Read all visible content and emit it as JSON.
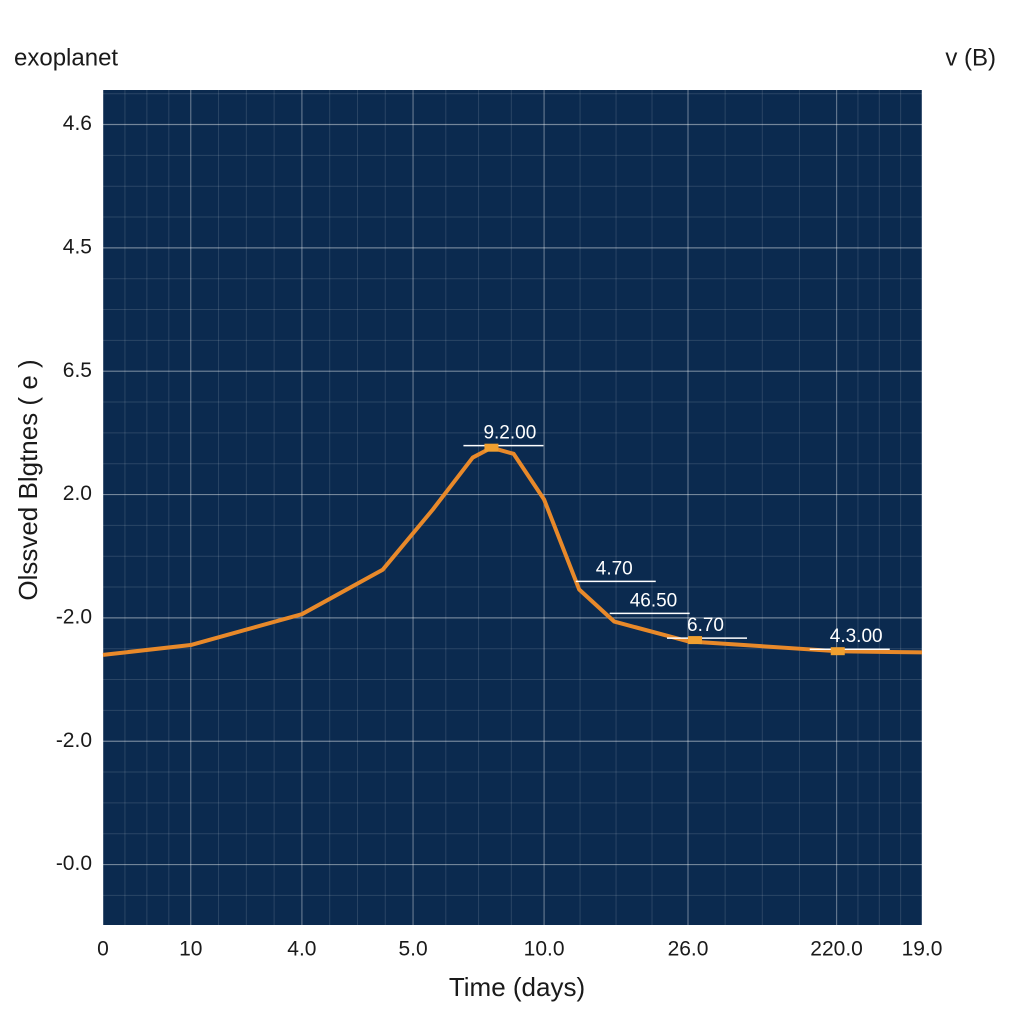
{
  "chart_data": {
    "type": "line",
    "title": "exoplanet",
    "subtitle": "v (B)",
    "x_label": "Time (days)",
    "y_label": "Olssved  Blgtnes   ( e )",
    "xlim": [
      0,
      7
    ],
    "ylim": [
      -0.49,
      6.28
    ],
    "xticks": [
      0,
      {
        "value": 0.75,
        "label": "10"
      },
      {
        "value": 1.7,
        "label": "4.0"
      },
      {
        "value": 2.65,
        "label": "5.0"
      },
      {
        "value": 3.77,
        "label": "10.0"
      },
      {
        "value": 5.0,
        "label": "26.0"
      },
      {
        "value": 6.27,
        "label": "220.0"
      },
      {
        "value": 7.0,
        "label": "19.0"
      }
    ],
    "yticks": [
      {
        "value": 0,
        "label": "-0.0"
      },
      {
        "value": 1,
        "label": "-2.0"
      },
      {
        "value": 2,
        "label": "-2.0"
      },
      {
        "value": 3,
        "label": "2.0"
      },
      {
        "value": 4,
        "label": "6.5"
      },
      {
        "value": 5,
        "label": "4.5"
      },
      {
        "value": 6,
        "label": "4.6"
      }
    ],
    "grid": true,
    "background": "#0b2a4f",
    "series": [
      {
        "color": "#e8892a",
        "x": [
          0,
          0.75,
          1.7,
          2.39,
          2.82,
          3.16,
          3.32,
          3.51,
          3.77,
          4.07,
          4.37,
          5.0,
          6.27,
          7.0
        ],
        "values": [
          1.7,
          1.78,
          2.03,
          2.39,
          2.88,
          3.3,
          3.38,
          3.33,
          2.96,
          2.23,
          1.97,
          1.81,
          1.73,
          1.72
        ]
      }
    ],
    "annotations": [
      {
        "text": "9.2.00",
        "x": 3.32,
        "y": 3.38,
        "marker": true
      },
      {
        "text": "4.70",
        "x": 4.28,
        "y": 2.28,
        "marker": false
      },
      {
        "text": "46.50",
        "x": 4.57,
        "y": 2.02,
        "marker": false
      },
      {
        "text": "6.70",
        "x": 5.06,
        "y": 1.82,
        "marker": true
      },
      {
        "text": "4.3.00",
        "x": 6.28,
        "y": 1.73,
        "marker": true
      }
    ]
  }
}
